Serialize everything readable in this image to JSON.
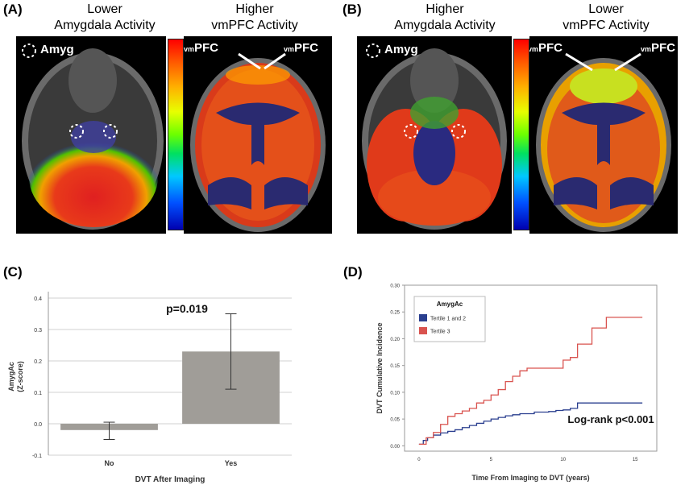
{
  "panels": {
    "A": {
      "letter": "(A)",
      "left_title_1": "Lower",
      "left_title_2": "Amygdala Activity",
      "right_title_1": "Higher",
      "right_title_2": "vmPFC Activity",
      "amyg_label": "Amyg",
      "vmpfc_prefix": "vm",
      "vmpfc_label": "PFC"
    },
    "B": {
      "letter": "(B)",
      "left_title_1": "Higher",
      "left_title_2": "Amygdala Activity",
      "right_title_1": "Lower",
      "right_title_2": "vmPFC Activity",
      "amyg_label": "Amyg",
      "vmpfc_prefix": "vm",
      "vmpfc_label": "PFC"
    },
    "C": {
      "letter": "(C)",
      "annotation": "p=0.019"
    },
    "D": {
      "letter": "(D)",
      "annotation": "Log-rank p<0.001"
    }
  },
  "chart_data": [
    {
      "type": "bar",
      "categories": [
        "No",
        "Yes"
      ],
      "values": [
        -0.02,
        0.23
      ],
      "error_low": [
        -0.05,
        0.11
      ],
      "error_high": [
        0.005,
        0.35
      ],
      "xlabel": "DVT After Imaging",
      "ylabel_1": "AmygAc",
      "ylabel_2": "(Z-score)",
      "ylim": [
        -0.1,
        0.4
      ],
      "yticks": [
        "-0.1",
        "0.0",
        "0.1",
        "0.2",
        "0.3",
        "0.4"
      ],
      "ytick_values": [
        -0.1,
        0.0,
        0.1,
        0.2,
        0.3,
        0.4
      ],
      "bar_color": "#a09d98",
      "grid": true
    },
    {
      "type": "line",
      "xlabel": "Time From Imaging to DVT (years)",
      "ylabel": "DVT Cumulative Incidence",
      "xlim": [
        -1,
        16.5
      ],
      "ylim": [
        -0.01,
        0.3
      ],
      "xticks": [
        "0",
        "5",
        "10",
        "15"
      ],
      "xtick_values": [
        0,
        5,
        10,
        15
      ],
      "yticks": [
        "0.00",
        "0.05",
        "0.10",
        "0.15",
        "0.20",
        "0.25",
        "0.30"
      ],
      "ytick_values": [
        0,
        0.05,
        0.1,
        0.15,
        0.2,
        0.25,
        0.3
      ],
      "legend_title": "AmygAc",
      "legend_position": "top-left",
      "series": [
        {
          "name": "Tertile 1 and 2",
          "color": "#2a3f8f",
          "points": [
            [
              0,
              0.003
            ],
            [
              0.3,
              0.01
            ],
            [
              0.6,
              0.015
            ],
            [
              1,
              0.02
            ],
            [
              1.5,
              0.024
            ],
            [
              2,
              0.027
            ],
            [
              2.5,
              0.03
            ],
            [
              3,
              0.034
            ],
            [
              3.5,
              0.038
            ],
            [
              4,
              0.042
            ],
            [
              4.5,
              0.046
            ],
            [
              5,
              0.05
            ],
            [
              5.5,
              0.053
            ],
            [
              6,
              0.056
            ],
            [
              6.5,
              0.058
            ],
            [
              7,
              0.06
            ],
            [
              8,
              0.063
            ],
            [
              9,
              0.064
            ],
            [
              9.5,
              0.066
            ],
            [
              10,
              0.067
            ],
            [
              10.5,
              0.07
            ],
            [
              11,
              0.08
            ],
            [
              12,
              0.08
            ],
            [
              13,
              0.08
            ],
            [
              14,
              0.08
            ],
            [
              15.5,
              0.08
            ]
          ]
        },
        {
          "name": "Tertile 3",
          "color": "#d9534f",
          "points": [
            [
              0,
              0.003
            ],
            [
              0.5,
              0.015
            ],
            [
              1,
              0.025
            ],
            [
              1.5,
              0.04
            ],
            [
              2,
              0.055
            ],
            [
              2.5,
              0.06
            ],
            [
              3,
              0.065
            ],
            [
              3.5,
              0.07
            ],
            [
              4,
              0.08
            ],
            [
              4.5,
              0.085
            ],
            [
              5,
              0.095
            ],
            [
              5.5,
              0.105
            ],
            [
              6,
              0.12
            ],
            [
              6.5,
              0.13
            ],
            [
              7,
              0.14
            ],
            [
              7.5,
              0.145
            ],
            [
              8,
              0.145
            ],
            [
              9,
              0.145
            ],
            [
              10,
              0.16
            ],
            [
              10.5,
              0.165
            ],
            [
              11,
              0.19
            ],
            [
              12,
              0.22
            ],
            [
              13,
              0.24
            ],
            [
              14,
              0.24
            ],
            [
              15.5,
              0.24
            ]
          ]
        }
      ]
    }
  ]
}
